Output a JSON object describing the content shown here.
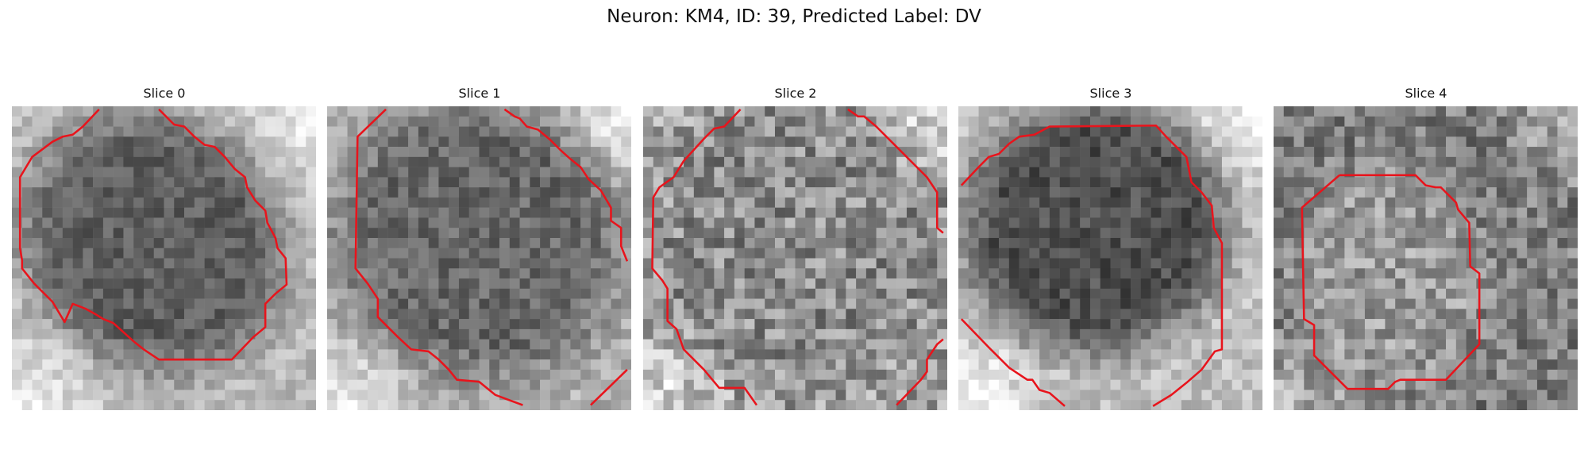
{
  "figure": {
    "title": "Neuron: KM4, ID: 39, Predicted Label: DV"
  },
  "colors": {
    "contour": "#e8141c",
    "background": "#ffffff"
  },
  "slices": [
    {
      "label": "Slice 0"
    },
    {
      "label": "Slice 1"
    },
    {
      "label": "Slice 2"
    },
    {
      "label": "Slice 3"
    },
    {
      "label": "Slice 4"
    }
  ]
}
